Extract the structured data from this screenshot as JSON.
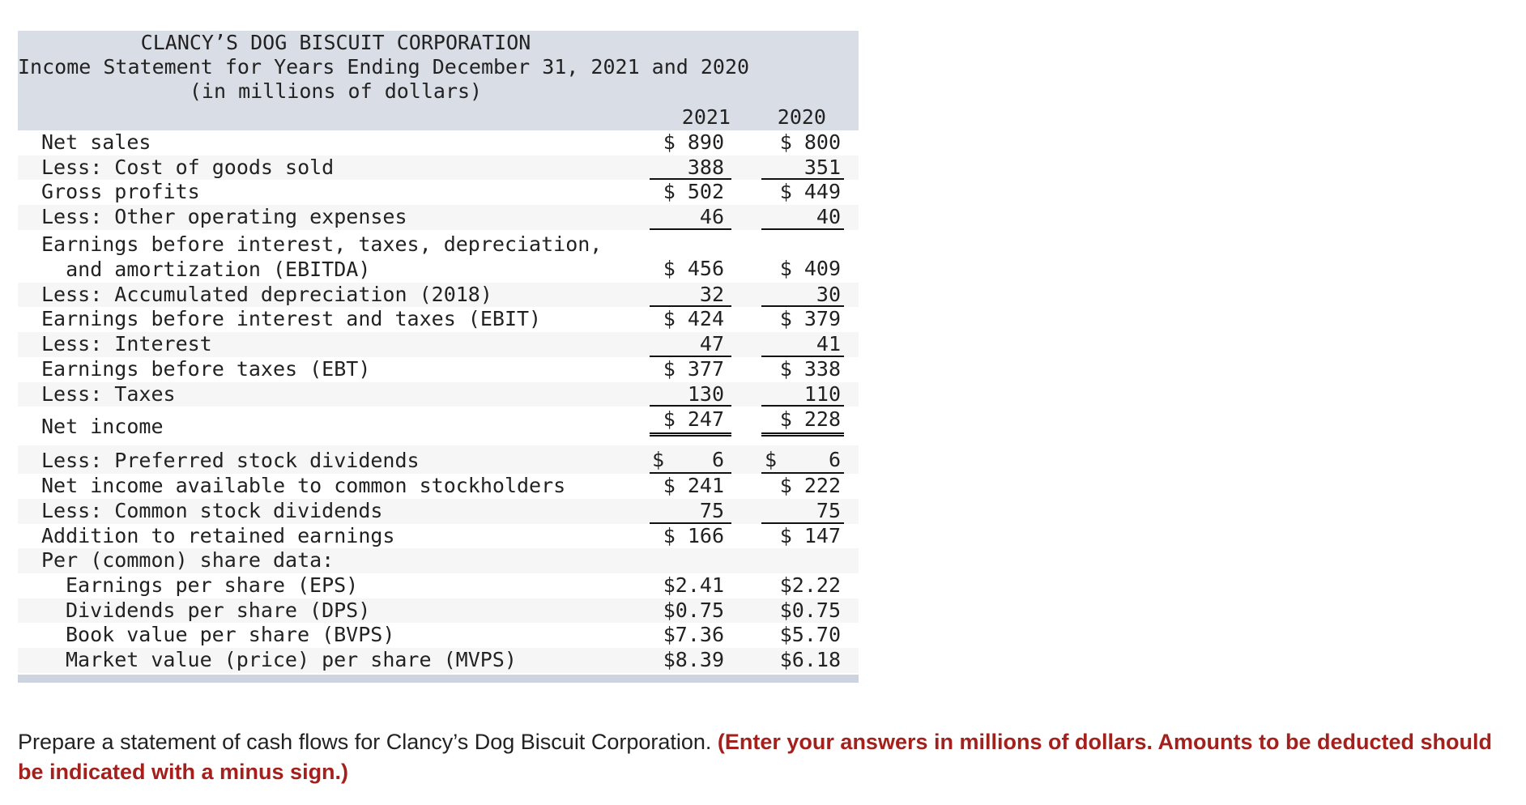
{
  "statement": {
    "company": "CLANCY’S DOG BISCUIT CORPORATION",
    "title": "Income Statement for Years Ending December 31, 2021 and 2020",
    "units": "(in millions of dollars)",
    "years": [
      "2021",
      "2020"
    ],
    "rows": [
      {
        "label": "Net sales",
        "v2021": "$ 890",
        "v2020": "$ 800"
      },
      {
        "label": "Less: Cost of goods sold",
        "v2021": "388",
        "v2020": "351"
      },
      {
        "label": "Gross profits",
        "v2021": "$ 502",
        "v2020": "$ 449"
      },
      {
        "label": "Less: Other operating expenses",
        "v2021": "46",
        "v2020": "40"
      },
      {
        "label": "Earnings before interest, taxes, depreciation,",
        "label2": "  and amortization (EBITDA)",
        "v2021": "$ 456",
        "v2020": "$ 409"
      },
      {
        "label": "Less: Accumulated depreciation (2018)",
        "v2021": "32",
        "v2020": "30"
      },
      {
        "label": "Earnings before interest and taxes (EBIT)",
        "v2021": "$ 424",
        "v2020": "$ 379"
      },
      {
        "label": "Less: Interest",
        "v2021": "47",
        "v2020": "41"
      },
      {
        "label": "Earnings before taxes (EBT)",
        "v2021": "$ 377",
        "v2020": "$ 338"
      },
      {
        "label": "Less: Taxes",
        "v2021": "130",
        "v2020": "110"
      },
      {
        "label": "Net income",
        "v2021": "$ 247",
        "v2020": "$ 228"
      },
      {
        "label": "Less: Preferred stock dividends",
        "v2021": "6",
        "v2020": "6"
      },
      {
        "label": "Net income available to common stockholders",
        "v2021": "$ 241",
        "v2020": "$ 222"
      },
      {
        "label": "Less: Common stock dividends",
        "v2021": "75",
        "v2020": "75"
      },
      {
        "label": "Addition to retained earnings",
        "v2021": "$ 166",
        "v2020": "$ 147"
      },
      {
        "label": "Per (common) share data:",
        "v2021": "",
        "v2020": ""
      },
      {
        "label": "Earnings per share (EPS)",
        "v2021": "$2.41",
        "v2020": "$2.22"
      },
      {
        "label": "Dividends per share (DPS)",
        "v2021": "$0.75",
        "v2020": "$0.75"
      },
      {
        "label": "Book value per share (BVPS)",
        "v2021": "$7.36",
        "v2020": "$5.70"
      },
      {
        "label": "Market value (price) per share (MVPS)",
        "v2021": "$8.39",
        "v2020": "$6.18"
      }
    ],
    "dollar_sign": "$"
  },
  "prompt": {
    "text": "Prepare a statement of cash flows for Clancy’s Dog Biscuit Corporation. ",
    "emphasis": "(Enter your answers in millions of dollars. Amounts to be deducted should be indicated with a minus sign.)",
    "emphasis_color": "#a3201c"
  },
  "colors": {
    "header_bg": "#d9dde6",
    "stripe_bg": "#f6f6f6",
    "footer_bar": "#ced4df"
  }
}
